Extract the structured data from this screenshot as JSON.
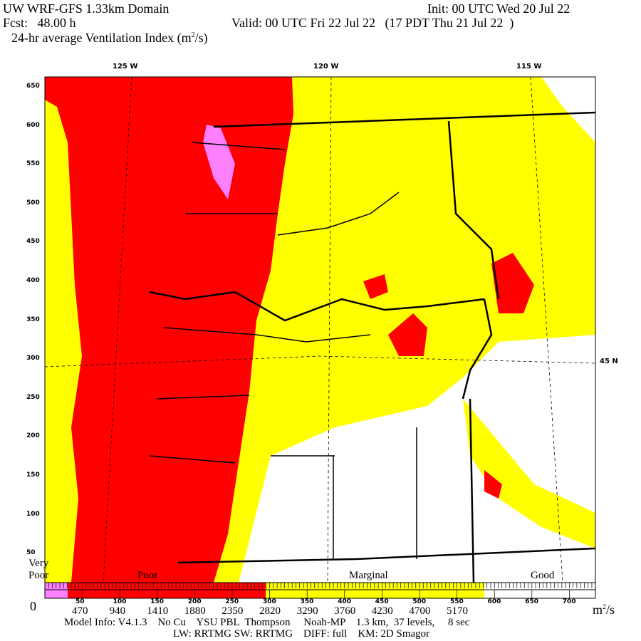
{
  "header": {
    "title": "UW WRF-GFS 1.33km Domain",
    "init": "Init: 00 UTC Wed 20 Jul 22",
    "fcst": "Fcst:   48.00 h",
    "valid": "Valid: 00 UTC Fri 22 Jul 22   (17 PDT Thu 21 Jul 22  )",
    "field": "24-hr average Ventilation Index (m",
    "field_sup": "2",
    "field_end": "/s)"
  },
  "map": {
    "lon_labels": [
      "125 W",
      "120 W",
      "115 W"
    ],
    "lat_label": "45 N",
    "left_axis_labels": [
      "650",
      "600",
      "550",
      "500",
      "450",
      "400",
      "350",
      "300",
      "250",
      "200",
      "150",
      "100",
      "50"
    ],
    "categories": {
      "very_poor_1": "Very",
      "very_poor_2": "Poor",
      "poor": "Poor",
      "marginal": "Marginal",
      "good": "Good"
    },
    "colors": {
      "very_poor": "#ff80ff",
      "poor": "#ff0000",
      "marginal": "#ffff00",
      "good": "#ffffff",
      "boundaries": "#000000"
    }
  },
  "colorbar": {
    "small_labels": [
      "50",
      "100",
      "150",
      "200",
      "250",
      "300",
      "350",
      "400",
      "450",
      "500",
      "550",
      "600",
      "650",
      "700"
    ],
    "zero": "0",
    "labels": [
      "470",
      "940",
      "1410",
      "1880",
      "2350",
      "2820",
      "3290",
      "3760",
      "4230",
      "4700",
      "5170"
    ],
    "unit": "m",
    "unit_sup": "2",
    "unit_end": "/s"
  },
  "footer": {
    "line1": "Model Info: V4.1.3    No Cu    YSU PBL  Thompson     Noah-MP    1.3 km,  37 levels,     8 sec",
    "line2": "LW: RRTMG SW: RRTMG    DIFF: full    KM: 2D Smagor"
  }
}
